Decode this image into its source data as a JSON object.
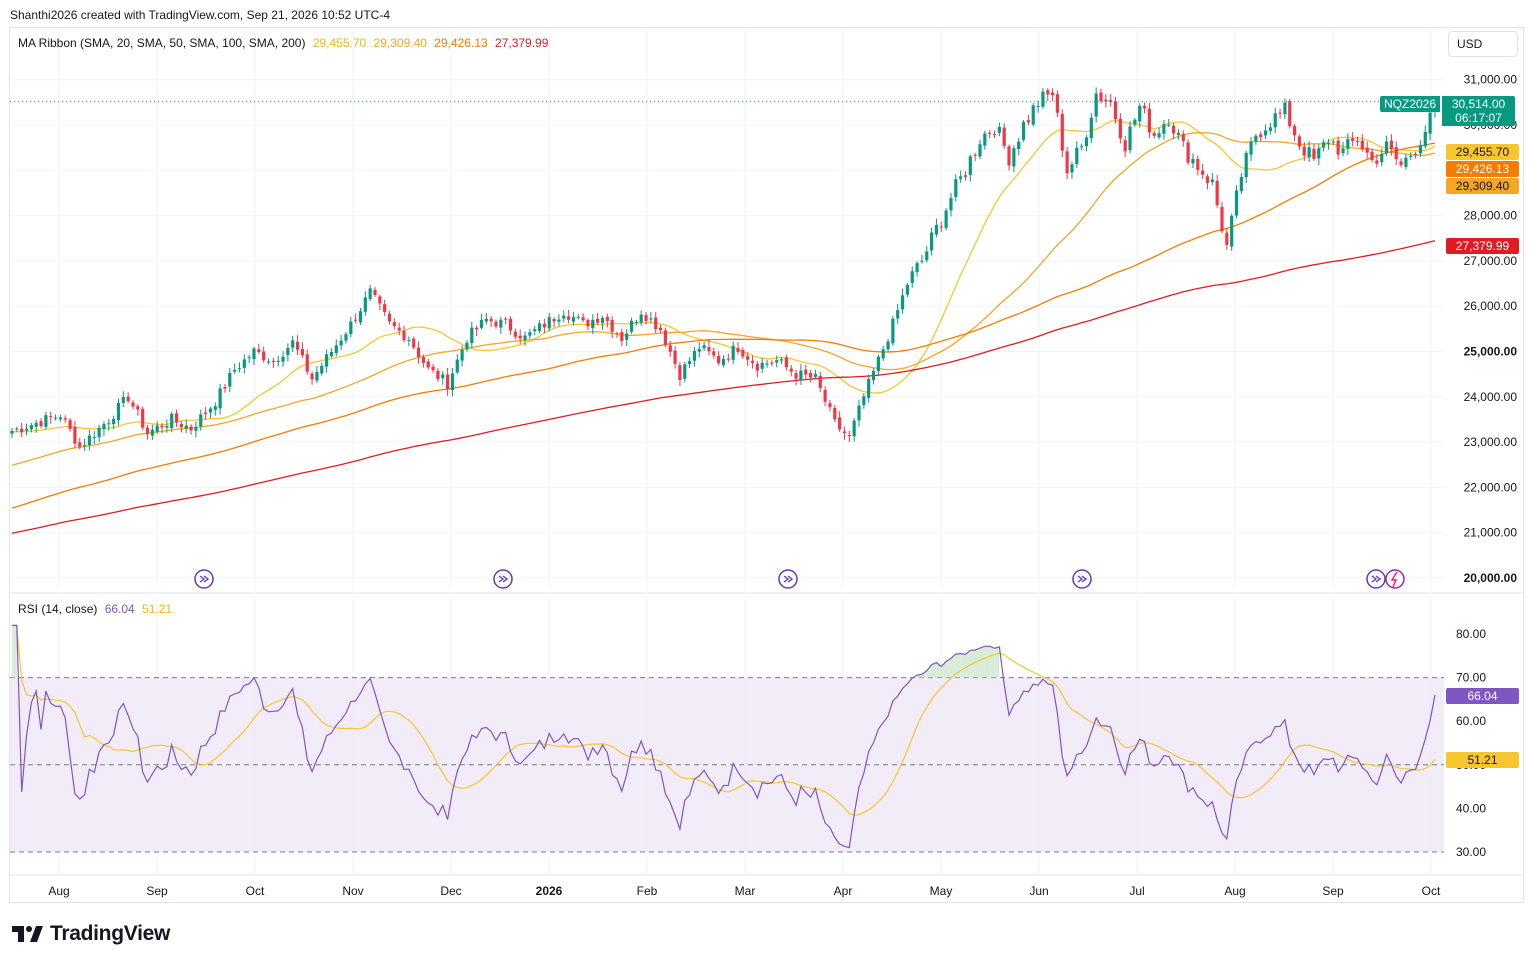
{
  "header": {
    "text": "Shanthi2026 created with TradingView.com, Sep 21, 2026 10:52 UTC-4"
  },
  "footer": {
    "brand": "TradingView"
  },
  "currency_button": {
    "label": "USD"
  },
  "colors": {
    "up": "#089981",
    "down": "#f23645",
    "sma20": "#f7c62f",
    "sma50": "#f5a623",
    "sma100": "#f57c00",
    "sma200": "#e01b24",
    "rsi": "#7e57c2",
    "rsi_ma": "#f7c62f",
    "rsi_band": "#ede7f6",
    "grid": "#f0f3fa"
  },
  "main_legend": {
    "title": "MA Ribbon (SMA, 20, SMA, 50, SMA, 100, SMA, 200)",
    "values": [
      "29,455.70",
      "29,309.40",
      "29,426.13",
      "27,379.99"
    ]
  },
  "rsi_legend": {
    "title": "RSI (14, close)",
    "values": [
      "66.04",
      "51.21"
    ]
  },
  "symbol_tag": {
    "symbol": "NQZ2026",
    "price": "30,514.00",
    "countdown": "06:17:07"
  },
  "price_tags": [
    {
      "label": "29,455.70",
      "bg": "#f7c62f",
      "fg": "#131722"
    },
    {
      "label": "29,426.13",
      "bg": "#f57c00",
      "fg": "#ffffff"
    },
    {
      "label": "29,309.40",
      "bg": "#f5a623",
      "fg": "#131722"
    },
    {
      "label": "27,379.99",
      "bg": "#e01b24",
      "fg": "#ffffff"
    }
  ],
  "rsi_tags": [
    {
      "label": "66.04",
      "bg": "#7e57c2",
      "fg": "#ffffff"
    },
    {
      "label": "51.21",
      "bg": "#f7c62f",
      "fg": "#131722"
    }
  ],
  "chart_data": [
    {
      "type": "candlestick",
      "symbol": "NQZ2026",
      "last_price": 30514.0,
      "y_ticks": [
        "31,000.00",
        "30,000.00",
        "29,000.00",
        "28,000.00",
        "27,000.00",
        "26,000.00",
        "25,000.00",
        "24,000.00",
        "23,000.00",
        "22,000.00",
        "21,000.00",
        "20,000.00"
      ],
      "ylim": [
        20000,
        31400
      ],
      "x_ticks": [
        "Aug",
        "Sep",
        "Oct",
        "Nov",
        "Dec",
        "2026",
        "Feb",
        "Mar",
        "Apr",
        "May",
        "Jun",
        "Jul",
        "Aug",
        "Sep",
        "Oct"
      ],
      "close_anchors": [
        [
          0,
          23250
        ],
        [
          10,
          23600
        ],
        [
          14,
          22900
        ],
        [
          20,
          23500
        ],
        [
          24,
          24000
        ],
        [
          28,
          23200
        ],
        [
          33,
          23500
        ],
        [
          37,
          23300
        ],
        [
          42,
          23900
        ],
        [
          46,
          24600
        ],
        [
          50,
          25000
        ],
        [
          54,
          24800
        ],
        [
          58,
          25200
        ],
        [
          62,
          24400
        ],
        [
          66,
          25000
        ],
        [
          70,
          25600
        ],
        [
          74,
          26300
        ],
        [
          78,
          25600
        ],
        [
          82,
          25300
        ],
        [
          86,
          24600
        ],
        [
          90,
          24300
        ],
        [
          94,
          25300
        ],
        [
          98,
          25700
        ],
        [
          102,
          25600
        ],
        [
          106,
          25300
        ],
        [
          110,
          25600
        ],
        [
          114,
          25900
        ],
        [
          118,
          25600
        ],
        [
          122,
          25800
        ],
        [
          126,
          25300
        ],
        [
          130,
          25900
        ],
        [
          134,
          25500
        ],
        [
          138,
          24500
        ],
        [
          142,
          25100
        ],
        [
          146,
          24800
        ],
        [
          150,
          25100
        ],
        [
          154,
          24700
        ],
        [
          158,
          24800
        ],
        [
          162,
          24500
        ],
        [
          166,
          24400
        ],
        [
          170,
          23400
        ],
        [
          173,
          23100
        ],
        [
          176,
          24000
        ],
        [
          179,
          24800
        ],
        [
          182,
          25600
        ],
        [
          185,
          26500
        ],
        [
          188,
          27000
        ],
        [
          191,
          27700
        ],
        [
          194,
          28400
        ],
        [
          197,
          29000
        ],
        [
          200,
          29700
        ],
        [
          203,
          30000
        ],
        [
          206,
          29300
        ],
        [
          209,
          30000
        ],
        [
          212,
          30500
        ],
        [
          215,
          30700
        ],
        [
          218,
          29000
        ],
        [
          221,
          29500
        ],
        [
          224,
          30700
        ],
        [
          227,
          30500
        ],
        [
          230,
          29600
        ],
        [
          233,
          30400
        ],
        [
          236,
          29800
        ],
        [
          239,
          30200
        ],
        [
          242,
          29500
        ],
        [
          245,
          29100
        ],
        [
          248,
          28700
        ],
        [
          251,
          27300
        ],
        [
          254,
          28900
        ],
        [
          257,
          29800
        ],
        [
          260,
          30100
        ],
        [
          263,
          30300
        ],
        [
          266,
          29600
        ],
        [
          269,
          29200
        ],
        [
          272,
          29700
        ],
        [
          275,
          29400
        ],
        [
          278,
          29700
        ],
        [
          281,
          29200
        ],
        [
          284,
          29500
        ],
        [
          287,
          29100
        ],
        [
          290,
          29500
        ],
        [
          293,
          30100
        ],
        [
          294,
          30514
        ]
      ],
      "series": [
        {
          "name": "SMA 20",
          "last": 29455.7
        },
        {
          "name": "SMA 50",
          "last": 29309.4
        },
        {
          "name": "SMA 100",
          "last": 29426.13
        },
        {
          "name": "SMA 200",
          "last": 27379.99
        }
      ]
    },
    {
      "type": "line",
      "panel": "RSI (14, close)",
      "y_ticks": [
        "80.00",
        "70.00",
        "60.00",
        "50.00",
        "40.00",
        "30.00"
      ],
      "ylim": [
        27.5,
        85
      ],
      "bands": [
        30,
        50,
        70
      ],
      "series": [
        {
          "name": "RSI",
          "last": 66.04
        },
        {
          "name": "RSI MA",
          "last": 51.21
        }
      ]
    }
  ]
}
